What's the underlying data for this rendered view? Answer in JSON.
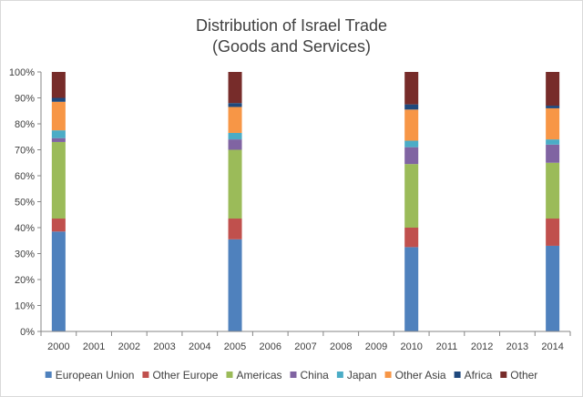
{
  "chart_data": {
    "type": "bar",
    "stacked": true,
    "percent_stacked": true,
    "title_line1": "Distribution of Israel Trade",
    "title_line2": "(Goods and Services)",
    "categories": [
      "2000",
      "2001",
      "2002",
      "2003",
      "2004",
      "2005",
      "2006",
      "2007",
      "2008",
      "2009",
      "2010",
      "2011",
      "2012",
      "2013",
      "2014"
    ],
    "y_ticks": [
      "0%",
      "10%",
      "20%",
      "30%",
      "40%",
      "50%",
      "60%",
      "70%",
      "80%",
      "90%",
      "100%"
    ],
    "ylim": [
      0,
      100
    ],
    "grid": false,
    "legend_position": "bottom",
    "series": [
      {
        "name": "European Union",
        "color": "#4f81bd",
        "values": [
          38.5,
          null,
          null,
          null,
          null,
          35.5,
          null,
          null,
          null,
          null,
          32.5,
          null,
          null,
          null,
          33
        ]
      },
      {
        "name": "Other Europe",
        "color": "#c0504d",
        "values": [
          5,
          null,
          null,
          null,
          null,
          8,
          null,
          null,
          null,
          null,
          7.5,
          null,
          null,
          null,
          10.5
        ]
      },
      {
        "name": "Americas",
        "color": "#9bbb59",
        "values": [
          29.5,
          null,
          null,
          null,
          null,
          26.5,
          null,
          null,
          null,
          null,
          24.5,
          null,
          null,
          null,
          21.5
        ]
      },
      {
        "name": "China",
        "color": "#8064a2",
        "values": [
          1.5,
          null,
          null,
          null,
          null,
          4,
          null,
          null,
          null,
          null,
          6.5,
          null,
          null,
          null,
          7
        ]
      },
      {
        "name": "Japan",
        "color": "#4bacc6",
        "values": [
          3,
          null,
          null,
          null,
          null,
          2.5,
          null,
          null,
          null,
          null,
          2.5,
          null,
          null,
          null,
          2
        ]
      },
      {
        "name": "Other Asia",
        "color": "#f79646",
        "values": [
          11,
          null,
          null,
          null,
          null,
          10,
          null,
          null,
          null,
          null,
          12,
          null,
          null,
          null,
          12
        ]
      },
      {
        "name": "Africa",
        "color": "#1f497d",
        "values": [
          1.5,
          null,
          null,
          null,
          null,
          1.5,
          null,
          null,
          null,
          null,
          2,
          null,
          null,
          null,
          1
        ]
      },
      {
        "name": "Other",
        "color": "#772c2a",
        "values": [
          10,
          null,
          null,
          null,
          null,
          12,
          null,
          null,
          null,
          null,
          12.5,
          null,
          null,
          null,
          13
        ]
      }
    ]
  }
}
